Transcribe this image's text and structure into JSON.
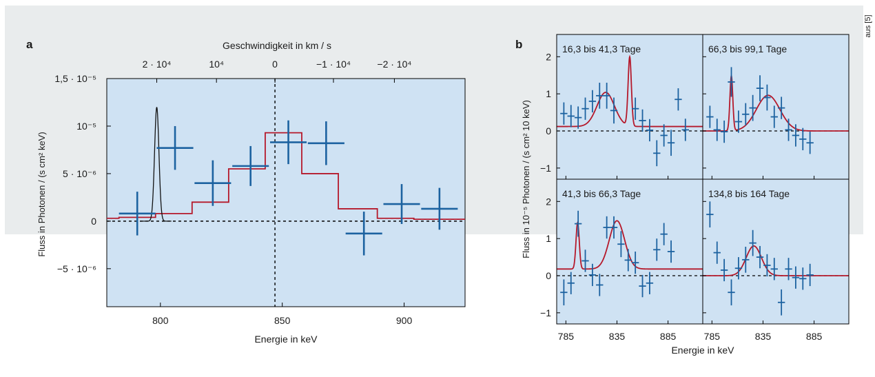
{
  "source_label": "aus [5]",
  "colors": {
    "background": "#e9eced",
    "plot_fill": "#cfe2f3",
    "data": "#1c62a0",
    "model": "#b5182a",
    "line_profile": "#111111"
  },
  "panel_a": {
    "label": "a",
    "top_axis_label": "Geschwindigkeit in km / s",
    "top_ticks": [
      {
        "e": 798.5,
        "label": "2 · 10⁴"
      },
      {
        "e": 823,
        "label": "10⁴"
      },
      {
        "e": 847,
        "label": "0"
      },
      {
        "e": 871,
        "label": "−1 · 10⁴"
      },
      {
        "e": 896,
        "label": "−2 · 10⁴"
      }
    ],
    "left_ticks": [
      {
        "v": 1.5e-05,
        "label": "1,5 · 10⁻⁵"
      },
      {
        "v": 1e-05,
        "label": "10⁻⁵"
      },
      {
        "v": 5e-06,
        "label": "5 · 10⁻⁶"
      },
      {
        "v": 0,
        "label": "0"
      },
      {
        "v": -5e-06,
        "label": "−5 · 10⁻⁶"
      }
    ]
  },
  "panel_b": {
    "label": "b",
    "xlabel": "Energie in keV",
    "ylabel": "Fluss in 10⁻⁵ Photonen / (s cm² 10 keV)",
    "y_ticks": [
      {
        "v": 2,
        "label": "2"
      },
      {
        "v": 1,
        "label": "1"
      },
      {
        "v": 0,
        "label": "0"
      },
      {
        "v": -1,
        "label": "−1"
      }
    ],
    "x_ticks": [
      {
        "e": 785,
        "label": "785"
      },
      {
        "e": 835,
        "label": "835"
      },
      {
        "e": 885,
        "label": "885"
      }
    ]
  },
  "chart_data": [
    {
      "type": "scatter",
      "xlabel": "Energie in keV",
      "ylabel": "Fluss in Photonen / (s cm² keV)",
      "xlim": [
        778,
        925
      ],
      "ylim": [
        -9e-06,
        1.5e-05
      ],
      "x_ticks": [
        800,
        850,
        900
      ],
      "grid": false,
      "reference_lines": {
        "x": 847,
        "y": 0
      },
      "series": [
        {
          "points": [
            {
              "x": 790.5,
              "y": 8e-07,
              "xerr": 7.5,
              "yerr": 2.3e-06
            },
            {
              "x": 806,
              "y": 7.7e-06,
              "xerr": 7.5,
              "yerr": 2.3e-06
            },
            {
              "x": 821.5,
              "y": 4e-06,
              "xerr": 7.5,
              "yerr": 2.4e-06
            },
            {
              "x": 837,
              "y": 5.8e-06,
              "xerr": 7.5,
              "yerr": 2.1e-06
            },
            {
              "x": 852.5,
              "y": 8.3e-06,
              "xerr": 7.5,
              "yerr": 2.3e-06
            },
            {
              "x": 868,
              "y": 8.2e-06,
              "xerr": 7.5,
              "yerr": 2.3e-06
            },
            {
              "x": 883.5,
              "y": -1.3e-06,
              "xerr": 7.5,
              "yerr": 2.3e-06
            },
            {
              "x": 899,
              "y": 1.8e-06,
              "xerr": 7.5,
              "yerr": 2.1e-06
            },
            {
              "x": 914.5,
              "y": 1.3e-06,
              "xerr": 7.5,
              "yerr": 2.2e-06
            }
          ]
        },
        {
          "steps": [
            [
              778,
              3e-07
            ],
            [
              783,
              4e-07
            ],
            [
              798,
              8e-07
            ],
            [
              813,
              2e-06
            ],
            [
              828,
              5.5e-06
            ],
            [
              843,
              9.3e-06
            ],
            [
              858,
              5e-06
            ],
            [
              873,
              1.3e-06
            ],
            [
              889,
              3e-07
            ],
            [
              904,
              2e-07
            ],
            [
              925,
              2e-07
            ]
          ]
        },
        {
          "line_profile": {
            "center": 798.5,
            "sigma": 0.9,
            "amplitude": 1.2e-05
          }
        }
      ]
    },
    {
      "type": "scatter",
      "xlim": [
        776,
        919
      ],
      "ylim": [
        -1.3,
        2.6
      ],
      "panels": [
        {
          "title": "16,3 bis 41,3 Tage",
          "points": [
            [
              783,
              0.47,
              0.3
            ],
            [
              790,
              0.4,
              0.3
            ],
            [
              797,
              0.36,
              0.3
            ],
            [
              804,
              0.6,
              0.3
            ],
            [
              811,
              0.8,
              0.3
            ],
            [
              818,
              0.95,
              0.35
            ],
            [
              825,
              0.95,
              0.35
            ],
            [
              832,
              0.55,
              0.35
            ],
            [
              853,
              0.6,
              0.3
            ],
            [
              860,
              0.28,
              0.3
            ],
            [
              867,
              0.02,
              0.3
            ],
            [
              874,
              -0.6,
              0.35
            ],
            [
              881,
              -0.12,
              0.3
            ],
            [
              888,
              -0.32,
              0.35
            ],
            [
              895,
              0.85,
              0.3
            ],
            [
              902,
              0.03,
              0.3
            ]
          ],
          "model": {
            "baseline": 0.12,
            "gaussians": [
              {
                "center": 824,
                "sigma": 8.5,
                "amplitude": 0.92
              },
              {
                "center": 847.5,
                "sigma": 1.6,
                "amplitude": 1.86
              }
            ]
          }
        },
        {
          "title": "66,3 bis 99,1 Tage",
          "points": [
            [
              783,
              0.38,
              0.3
            ],
            [
              790,
              0.03,
              0.3
            ],
            [
              797,
              -0.02,
              0.3
            ],
            [
              804,
              1.32,
              0.4
            ],
            [
              811,
              0.25,
              0.3
            ],
            [
              818,
              0.45,
              0.3
            ],
            [
              825,
              0.62,
              0.35
            ],
            [
              832,
              1.15,
              0.35
            ],
            [
              839,
              0.9,
              0.35
            ],
            [
              846,
              0.38,
              0.3
            ],
            [
              853,
              0.62,
              0.3
            ],
            [
              860,
              0.03,
              0.3
            ],
            [
              867,
              -0.12,
              0.3
            ],
            [
              874,
              -0.22,
              0.3
            ],
            [
              881,
              -0.32,
              0.3
            ]
          ],
          "model": {
            "baseline": 0.0,
            "gaussians": [
              {
                "center": 804,
                "sigma": 1.4,
                "amplitude": 1.48
              },
              {
                "center": 840,
                "sigma": 11.5,
                "amplitude": 0.96
              }
            ]
          }
        },
        {
          "title": "41,3 bis 66,3 Tage",
          "points": [
            [
              783,
              -0.45,
              0.35
            ],
            [
              790,
              -0.2,
              0.3
            ],
            [
              797,
              1.4,
              0.35
            ],
            [
              804,
              0.4,
              0.3
            ],
            [
              811,
              0.02,
              0.3
            ],
            [
              818,
              -0.25,
              0.3
            ],
            [
              825,
              1.3,
              0.3
            ],
            [
              832,
              1.3,
              0.3
            ],
            [
              839,
              0.85,
              0.35
            ],
            [
              846,
              0.42,
              0.3
            ],
            [
              853,
              0.35,
              0.3
            ],
            [
              860,
              -0.28,
              0.3
            ],
            [
              867,
              -0.2,
              0.3
            ],
            [
              874,
              0.7,
              0.3
            ],
            [
              881,
              1.12,
              0.3
            ],
            [
              888,
              0.65,
              0.3
            ]
          ],
          "model": {
            "baseline": 0.18,
            "gaussians": [
              {
                "center": 796.5,
                "sigma": 1.6,
                "amplitude": 1.25
              },
              {
                "center": 835,
                "sigma": 7.5,
                "amplitude": 1.3
              }
            ]
          }
        },
        {
          "title": "134,8 bis 164 Tage",
          "points": [
            [
              783,
              1.65,
              0.35
            ],
            [
              790,
              0.62,
              0.3
            ],
            [
              797,
              0.15,
              0.3
            ],
            [
              804,
              -0.45,
              0.35
            ],
            [
              811,
              0.2,
              0.3
            ],
            [
              818,
              0.43,
              0.35
            ],
            [
              825,
              0.88,
              0.35
            ],
            [
              832,
              0.5,
              0.3
            ],
            [
              839,
              0.28,
              0.3
            ],
            [
              846,
              0.18,
              0.3
            ],
            [
              853,
              -0.72,
              0.35
            ],
            [
              860,
              0.18,
              0.3
            ],
            [
              867,
              -0.05,
              0.3
            ],
            [
              874,
              -0.08,
              0.3
            ],
            [
              881,
              0.02,
              0.3
            ]
          ],
          "model": {
            "baseline": 0.0,
            "gaussians": [
              {
                "center": 826,
                "sigma": 7.5,
                "amplitude": 0.8
              }
            ]
          }
        }
      ]
    }
  ]
}
